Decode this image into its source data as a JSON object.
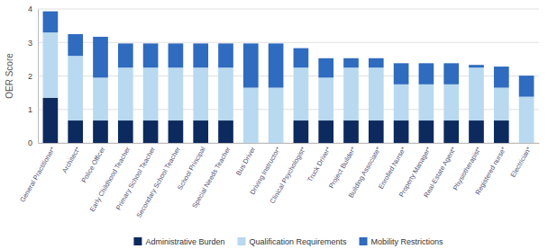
{
  "chart_data": {
    "type": "bar",
    "stacked": true,
    "categories": [
      "General Practitioner*",
      "Architect*",
      "Police Officer",
      "Early Childhood Teacher",
      "Primary School Teacher",
      "Secondary School Teacher",
      "School Principal",
      "Special Needs Teacher",
      "Bus Driver",
      "Driving Instructor*",
      "Clinical Psychologist*",
      "Truck Driver*",
      "Project Builder*",
      "Building Associate*",
      "Enrolled Nurse*",
      "Property Manager*",
      "Real-Estate Agent*",
      "Physiotherapist*",
      "Registered nurse*",
      "Electrician*"
    ],
    "series": [
      {
        "name": "Administrative Burden",
        "color": "#0d2a5e",
        "values": [
          1.35,
          0.67,
          0.67,
          0.67,
          0.67,
          0.67,
          0.67,
          0.67,
          0.0,
          0.0,
          0.67,
          0.67,
          0.67,
          0.67,
          0.67,
          0.67,
          0.67,
          0.67,
          0.67,
          0.0
        ]
      },
      {
        "name": "Qualification Requirements",
        "color": "#b8d9f0",
        "values": [
          1.95,
          1.93,
          1.28,
          1.58,
          1.58,
          1.58,
          1.58,
          1.58,
          1.65,
          1.65,
          1.58,
          1.28,
          1.58,
          1.58,
          1.08,
          1.08,
          1.08,
          1.58,
          0.98,
          1.38
        ]
      },
      {
        "name": "Mobility Restrictions",
        "color": "#2f6bbf",
        "values": [
          0.63,
          0.65,
          1.22,
          0.72,
          0.72,
          0.72,
          0.72,
          0.72,
          1.32,
          1.32,
          0.58,
          0.58,
          0.28,
          0.28,
          0.63,
          0.63,
          0.63,
          0.08,
          0.63,
          0.63
        ]
      }
    ],
    "y_label": "OER Score",
    "ylim": [
      0,
      4
    ],
    "yticks": [
      0,
      1,
      2,
      3,
      4
    ],
    "grid": true,
    "legend": "bottom"
  }
}
